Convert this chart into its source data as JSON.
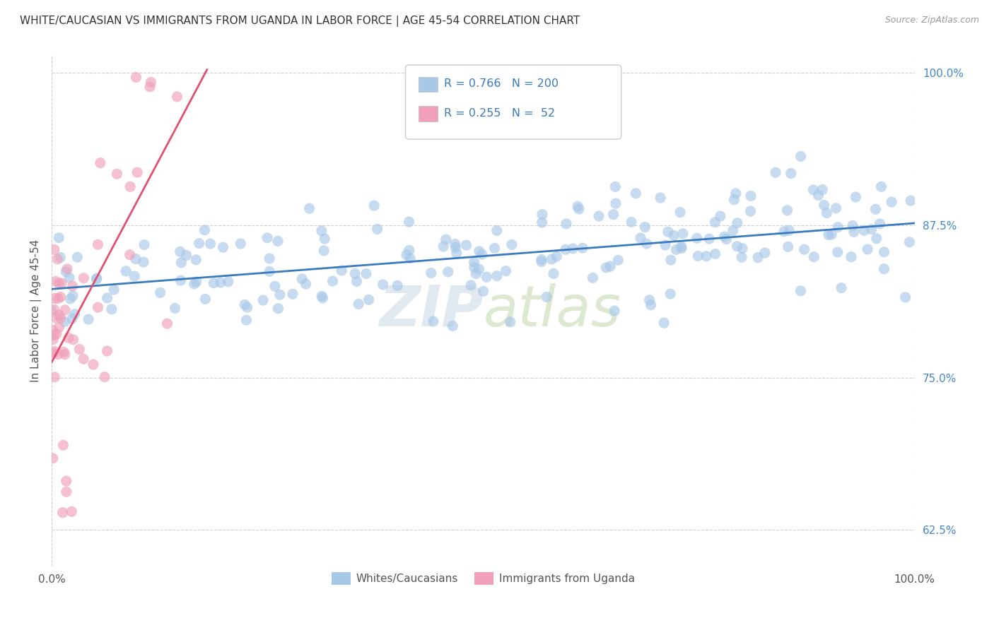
{
  "title": "WHITE/CAUCASIAN VS IMMIGRANTS FROM UGANDA IN LABOR FORCE | AGE 45-54 CORRELATION CHART",
  "source": "Source: ZipAtlas.com",
  "ylabel": "In Labor Force | Age 45-54",
  "xlim": [
    0.0,
    1.0
  ],
  "ylim": [
    0.595,
    1.015
  ],
  "xtick_labels": [
    "0.0%",
    "100.0%"
  ],
  "ytick_labels": [
    "62.5%",
    "75.0%",
    "87.5%",
    "100.0%"
  ],
  "ytick_positions": [
    0.625,
    0.75,
    0.875,
    1.0
  ],
  "watermark_zip": "ZIP",
  "watermark_atlas": "atlas",
  "blue_R": 0.766,
  "blue_N": 200,
  "pink_R": 0.255,
  "pink_N": 52,
  "scatter_color_blue": "#a8c8e8",
  "scatter_color_pink": "#f0a0b8",
  "trendline_color_blue": "#3a7abf",
  "trendline_color_pink": "#e05070",
  "legend_labels": [
    "Whites/Caucasians",
    "Immigrants from Uganda"
  ],
  "legend_patch_blue": "#a8c8e8",
  "legend_patch_pink": "#f0a0b8",
  "background_color": "#ffffff",
  "grid_color": "#cccccc",
  "title_color": "#333333",
  "title_fontsize": 11,
  "axis_label_color": "#555555",
  "ytick_color": "#4488cc",
  "xtick_color": "#555555"
}
